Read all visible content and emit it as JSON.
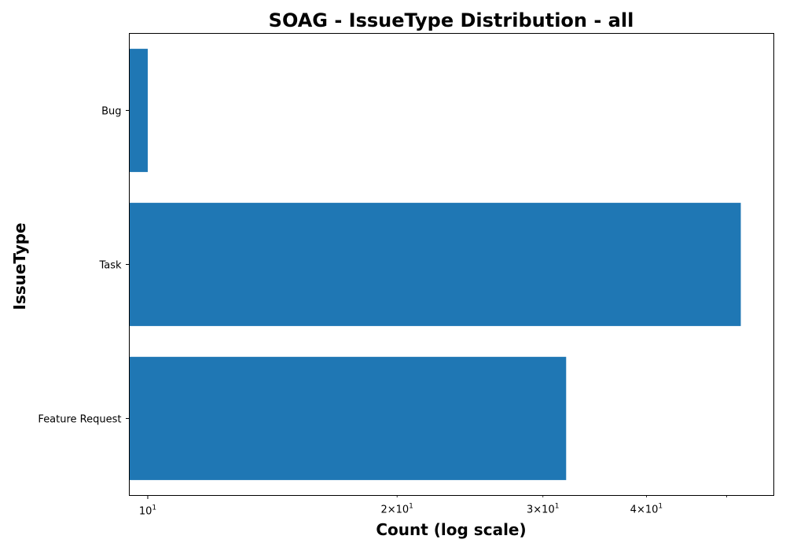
{
  "chart_data": {
    "type": "bar",
    "orientation": "horizontal",
    "title": "SOAG - IssueType Distribution - all",
    "xlabel": "Count (log scale)",
    "ylabel": "IssueType",
    "x_scale": "log",
    "xlim": [
      9.5,
      57
    ],
    "categories": [
      "Bug",
      "Task",
      "Feature Request"
    ],
    "values": [
      10,
      52,
      32
    ],
    "bar_color": "#1f77b4",
    "x_major_ticks": [
      {
        "value": 10,
        "base": "10",
        "exp": "1"
      }
    ],
    "x_minor_ticks": [
      {
        "value": 20,
        "mult": "2",
        "base": "10",
        "exp": "1",
        "labeled": true
      },
      {
        "value": 30,
        "mult": "3",
        "base": "10",
        "exp": "1",
        "labeled": true
      },
      {
        "value": 40,
        "mult": "4",
        "base": "10",
        "exp": "1",
        "labeled": true
      },
      {
        "value": 50,
        "mult": "",
        "base": "",
        "exp": "",
        "labeled": false
      }
    ],
    "grid": false,
    "legend": "none"
  }
}
